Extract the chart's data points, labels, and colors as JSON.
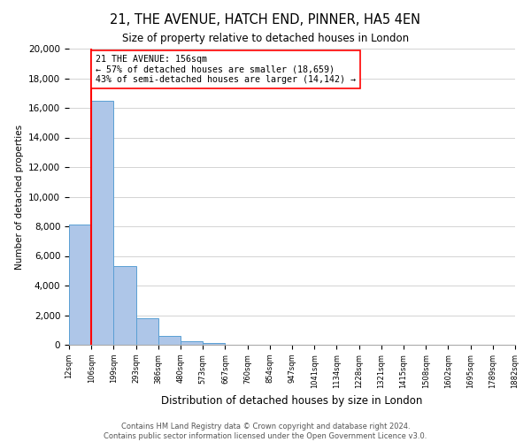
{
  "title": "21, THE AVENUE, HATCH END, PINNER, HA5 4EN",
  "subtitle": "Size of property relative to detached houses in London",
  "xlabel": "Distribution of detached houses by size in London",
  "ylabel": "Number of detached properties",
  "bin_labels": [
    "12sqm",
    "106sqm",
    "199sqm",
    "293sqm",
    "386sqm",
    "480sqm",
    "573sqm",
    "667sqm",
    "760sqm",
    "854sqm",
    "947sqm",
    "1041sqm",
    "1134sqm",
    "1228sqm",
    "1321sqm",
    "1415sqm",
    "1508sqm",
    "1602sqm",
    "1695sqm",
    "1789sqm",
    "1882sqm"
  ],
  "bar_heights": [
    8100,
    16500,
    5300,
    1800,
    600,
    250,
    100,
    0,
    0,
    0,
    0,
    0,
    0,
    0,
    0,
    0,
    0,
    0,
    0,
    0
  ],
  "bar_color": "#aec6e8",
  "bar_edge_color": "#5a9fd4",
  "ylim": [
    0,
    20000
  ],
  "yticks": [
    0,
    2000,
    4000,
    6000,
    8000,
    10000,
    12000,
    14000,
    16000,
    18000,
    20000
  ],
  "red_line_x": 1.0,
  "annotation_title": "21 THE AVENUE: 156sqm",
  "annotation_line1": "← 57% of detached houses are smaller (18,659)",
  "annotation_line2": "43% of semi-detached houses are larger (14,142) →",
  "footer_line1": "Contains HM Land Registry data © Crown copyright and database right 2024.",
  "footer_line2": "Contains public sector information licensed under the Open Government Licence v3.0.",
  "background_color": "#ffffff",
  "grid_color": "#cccccc"
}
